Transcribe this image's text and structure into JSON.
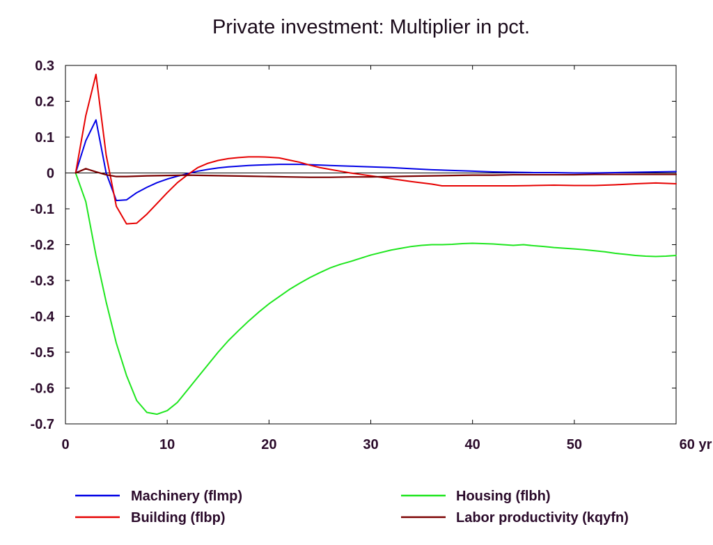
{
  "chart_data": {
    "type": "line",
    "title": "Private investment: Multiplier in pct.",
    "xlabel": "",
    "ylabel": "",
    "xlim": [
      0,
      60
    ],
    "ylim": [
      -0.7,
      0.3
    ],
    "x_ticks": [
      0,
      10,
      20,
      30,
      40,
      50,
      60
    ],
    "x_tick_labels": [
      "0",
      "10",
      "20",
      "30",
      "40",
      "50",
      "60 yr"
    ],
    "y_ticks": [
      0.3,
      0.2,
      0.1,
      0,
      -0.1,
      -0.2,
      -0.3,
      -0.4,
      -0.5,
      -0.6,
      -0.7
    ],
    "y_tick_labels": [
      "0.3",
      "0.2",
      "0.1",
      "0",
      "-0.1",
      "-0.2",
      "-0.3",
      "-0.4",
      "-0.5",
      "-0.6",
      "-0.7"
    ],
    "grid": false,
    "zero_line": true,
    "legend_position": "bottom",
    "series": [
      {
        "name": "Machinery (flmp)",
        "color": "#0000e6",
        "x": [
          1,
          2,
          3,
          4,
          5,
          6,
          7,
          8,
          9,
          10,
          11,
          12,
          13,
          14,
          15,
          16,
          17,
          18,
          19,
          20,
          21,
          22,
          23,
          24,
          25,
          26,
          27,
          28,
          29,
          30,
          32,
          34,
          36,
          38,
          40,
          42,
          44,
          46,
          48,
          50,
          52,
          54,
          56,
          58,
          60
        ],
        "y": [
          0.0,
          0.09,
          0.148,
          0.0,
          -0.077,
          -0.075,
          -0.055,
          -0.04,
          -0.027,
          -0.017,
          -0.009,
          -0.002,
          0.005,
          0.01,
          0.014,
          0.017,
          0.019,
          0.021,
          0.022,
          0.023,
          0.024,
          0.024,
          0.024,
          0.023,
          0.022,
          0.021,
          0.02,
          0.019,
          0.018,
          0.017,
          0.015,
          0.012,
          0.009,
          0.007,
          0.005,
          0.003,
          0.002,
          0.001,
          0.001,
          0.0,
          0.0,
          0.001,
          0.002,
          0.003,
          0.004
        ]
      },
      {
        "name": "Building (flbp)",
        "color": "#e60000",
        "x": [
          1,
          2,
          3,
          4,
          5,
          6,
          7,
          8,
          9,
          10,
          11,
          12,
          13,
          14,
          15,
          16,
          17,
          18,
          19,
          20,
          21,
          22,
          23,
          24,
          25,
          26,
          27,
          28,
          29,
          30,
          32,
          34,
          36,
          37,
          40,
          42,
          44,
          46,
          48,
          50,
          52,
          54,
          56,
          58,
          60
        ],
        "y": [
          0.0,
          0.16,
          0.275,
          0.05,
          -0.093,
          -0.142,
          -0.14,
          -0.115,
          -0.085,
          -0.055,
          -0.027,
          -0.005,
          0.015,
          0.027,
          0.035,
          0.04,
          0.043,
          0.045,
          0.045,
          0.044,
          0.042,
          0.036,
          0.03,
          0.022,
          0.015,
          0.01,
          0.005,
          0.0,
          -0.004,
          -0.008,
          -0.016,
          -0.024,
          -0.031,
          -0.036,
          -0.036,
          -0.036,
          -0.036,
          -0.035,
          -0.034,
          -0.035,
          -0.035,
          -0.033,
          -0.03,
          -0.028,
          -0.03
        ]
      },
      {
        "name": "Housing (flbh)",
        "color": "#1ee61e",
        "x": [
          1,
          2,
          3,
          4,
          5,
          6,
          7,
          8,
          9,
          10,
          11,
          12,
          13,
          14,
          15,
          16,
          17,
          18,
          19,
          20,
          21,
          22,
          23,
          24,
          25,
          26,
          27,
          28,
          29,
          30,
          31,
          32,
          33,
          34,
          35,
          36,
          37,
          38,
          39,
          40,
          41,
          42,
          43,
          44,
          45,
          46,
          47,
          48,
          49,
          50,
          51,
          52,
          53,
          54,
          55,
          56,
          57,
          58,
          59,
          60
        ],
        "y": [
          0.0,
          -0.08,
          -0.23,
          -0.36,
          -0.475,
          -0.565,
          -0.635,
          -0.668,
          -0.673,
          -0.663,
          -0.64,
          -0.605,
          -0.57,
          -0.535,
          -0.5,
          -0.468,
          -0.44,
          -0.413,
          -0.388,
          -0.365,
          -0.345,
          -0.325,
          -0.308,
          -0.292,
          -0.278,
          -0.265,
          -0.255,
          -0.247,
          -0.238,
          -0.229,
          -0.222,
          -0.215,
          -0.21,
          -0.205,
          -0.202,
          -0.2,
          -0.2,
          -0.199,
          -0.197,
          -0.196,
          -0.197,
          -0.198,
          -0.2,
          -0.202,
          -0.2,
          -0.203,
          -0.205,
          -0.208,
          -0.21,
          -0.212,
          -0.214,
          -0.217,
          -0.22,
          -0.224,
          -0.227,
          -0.23,
          -0.232,
          -0.233,
          -0.232,
          -0.23
        ]
      },
      {
        "name": "Labor productivity (kqyfn)",
        "color": "#7a0000",
        "x": [
          1,
          2,
          3,
          4,
          5,
          6,
          8,
          10,
          12,
          14,
          16,
          18,
          20,
          22,
          24,
          26,
          28,
          30,
          32,
          34,
          36,
          38,
          40,
          42,
          44,
          46,
          48,
          50,
          52,
          54,
          56,
          58,
          60
        ],
        "y": [
          0.0,
          0.012,
          0.003,
          -0.005,
          -0.01,
          -0.01,
          -0.008,
          -0.007,
          -0.006,
          -0.007,
          -0.008,
          -0.009,
          -0.01,
          -0.011,
          -0.012,
          -0.012,
          -0.011,
          -0.011,
          -0.01,
          -0.009,
          -0.008,
          -0.007,
          -0.006,
          -0.006,
          -0.005,
          -0.005,
          -0.005,
          -0.005,
          -0.004,
          -0.004,
          -0.004,
          -0.004,
          -0.004
        ]
      }
    ]
  }
}
